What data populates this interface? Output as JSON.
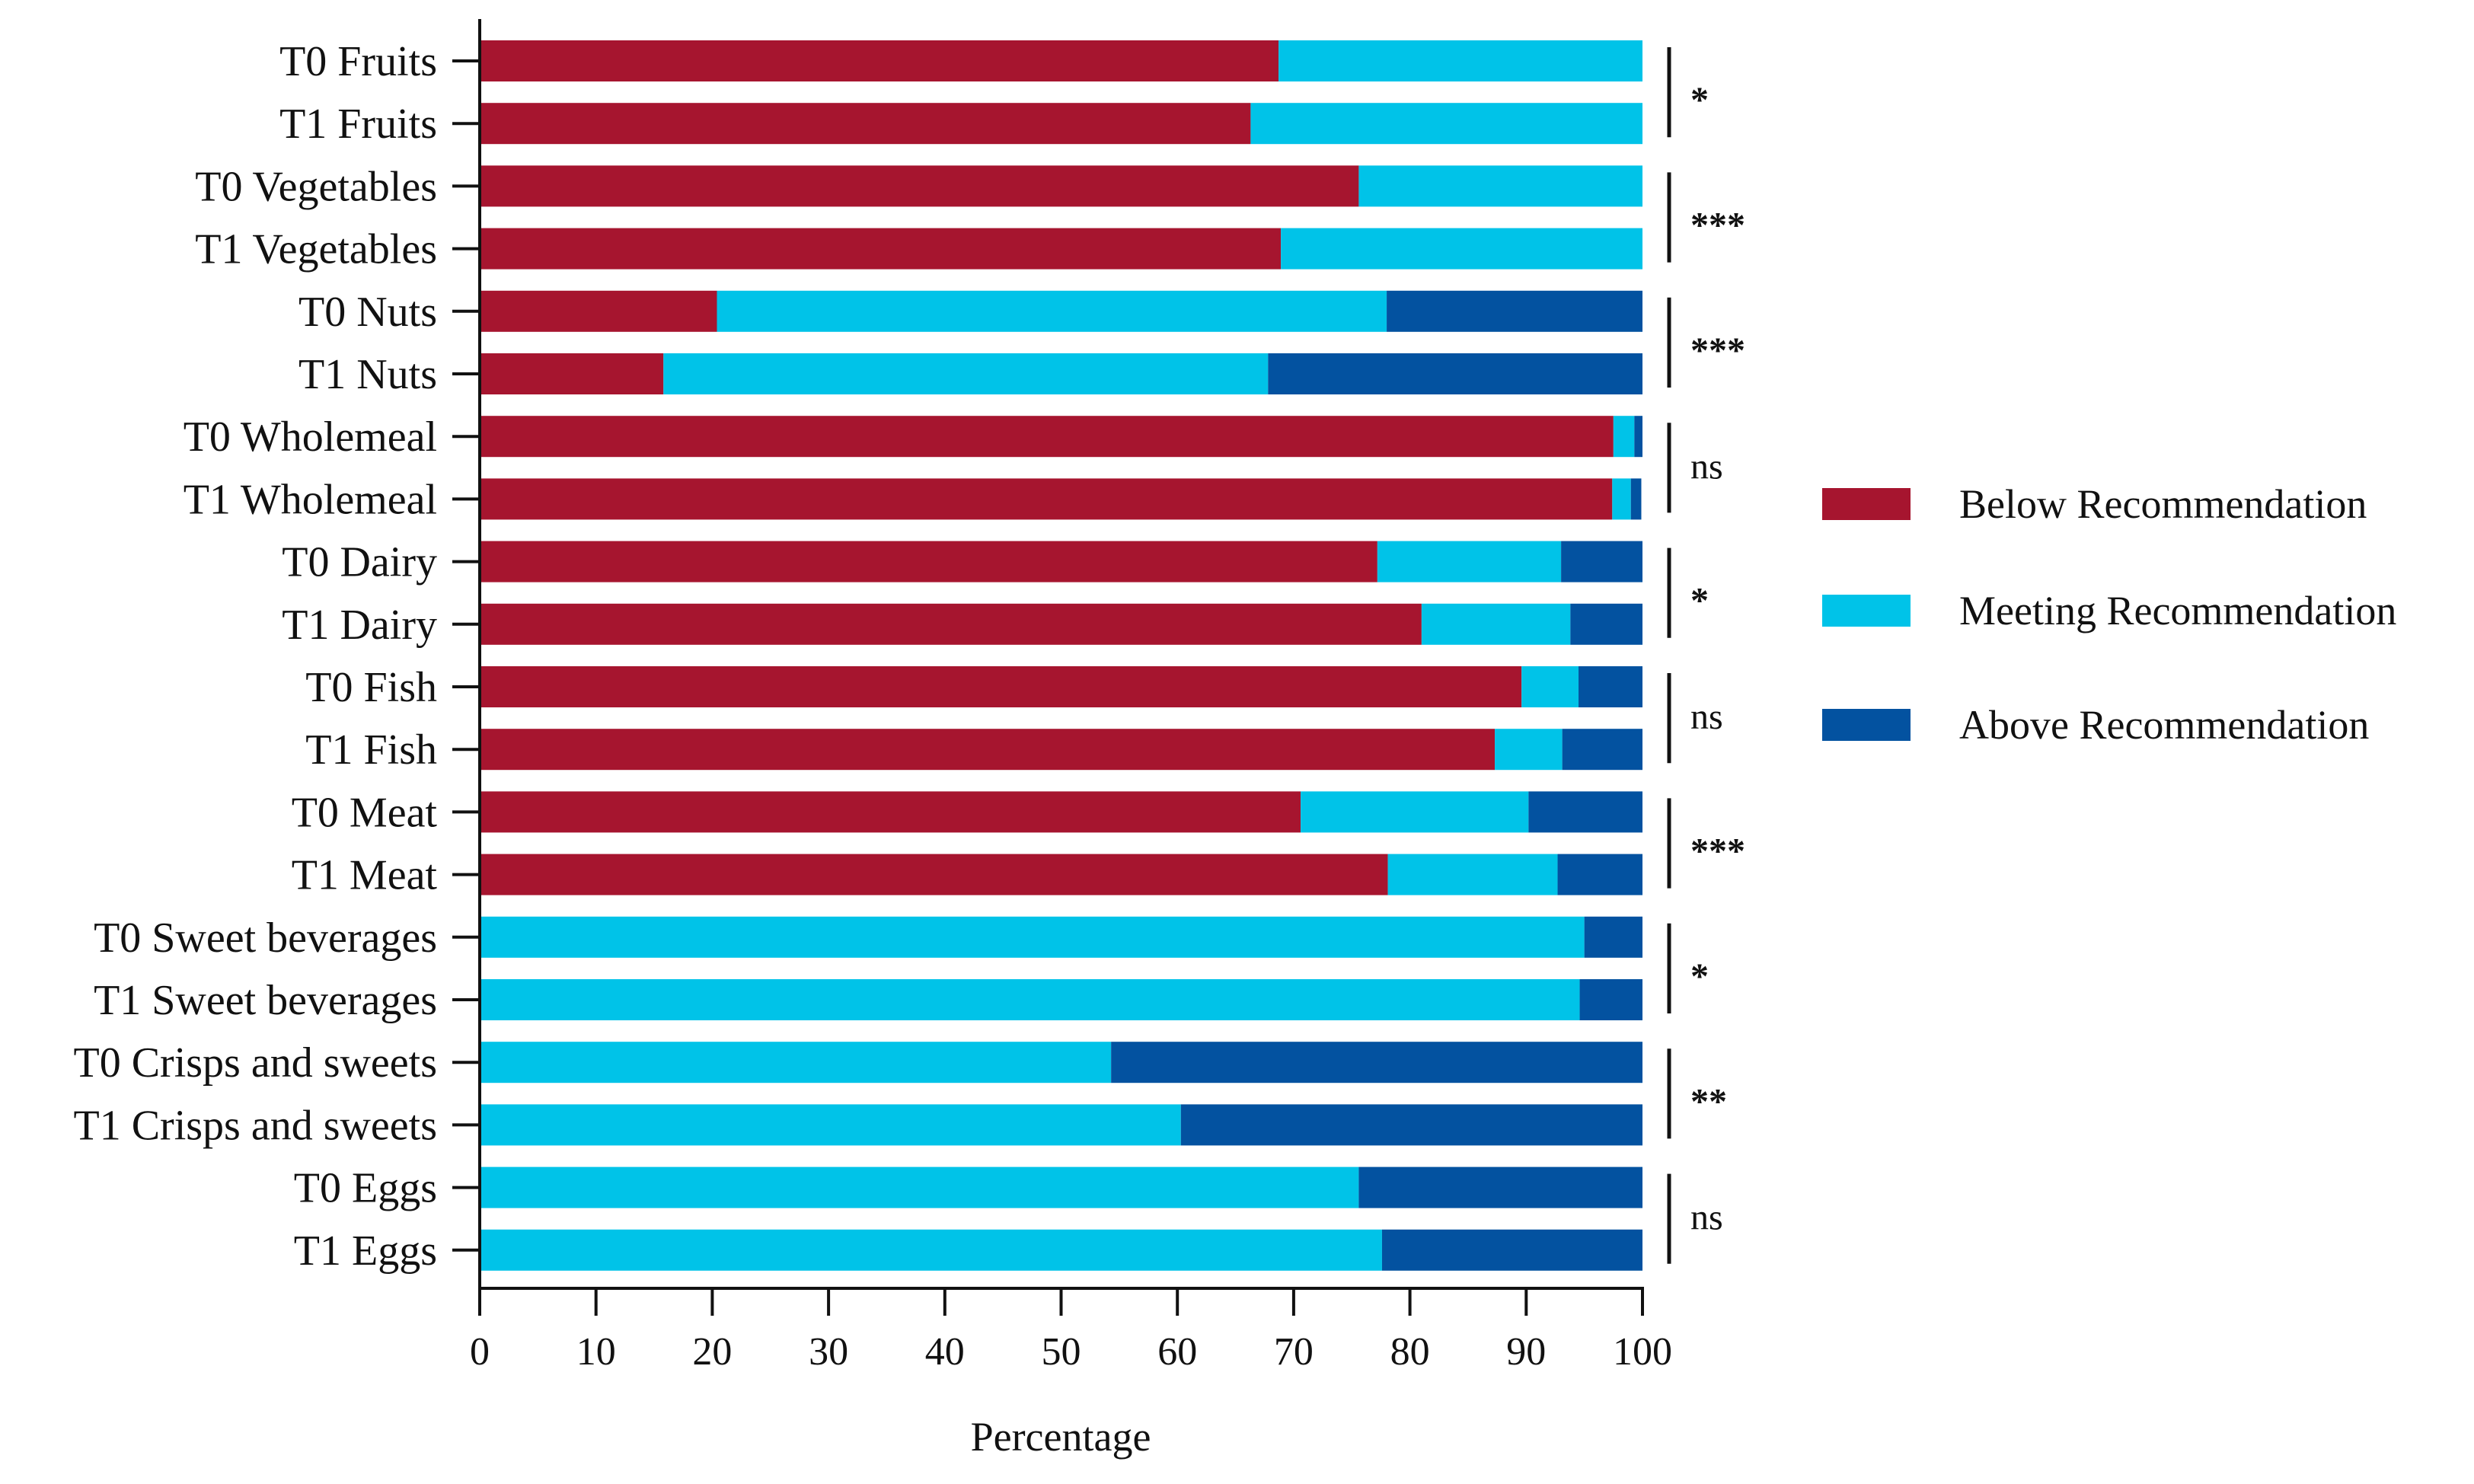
{
  "chart_data": {
    "type": "bar",
    "orientation": "horizontal",
    "stacked": true,
    "title": "",
    "xlabel": "Percentage",
    "ylabel": "",
    "xlim": [
      0,
      100
    ],
    "xticks": [
      "0",
      "10",
      "20",
      "30",
      "40",
      "50",
      "60",
      "70",
      "80",
      "90",
      "100"
    ],
    "grid": false,
    "legend_position": "right",
    "categories": [
      "T0 Fruits",
      "T1 Fruits",
      "T0 Vegetables",
      "T1 Vegetables",
      "T0 Nuts",
      "T1 Nuts",
      "T0 Wholemeal",
      "T1 Wholemeal",
      "T0 Dairy",
      "T1 Dairy",
      "T0 Fish",
      "T1 Fish",
      "T0 Meat",
      "T1 Meat",
      "T0 Sweet beverages",
      "T1 Sweet beverages",
      "T0 Crisps and sweets",
      "T1 Crisps and sweets",
      "T0 Eggs",
      "T1 Eggs"
    ],
    "series": [
      {
        "name": "Below Recommendation",
        "color": "#a6152f",
        "values": [
          68.7,
          66.3,
          75.6,
          68.9,
          20.4,
          15.8,
          97.5,
          97.4,
          77.2,
          81.0,
          89.6,
          87.3,
          70.6,
          78.1,
          0,
          0,
          0,
          0,
          0,
          0
        ]
      },
      {
        "name": "Meeting Recommendation",
        "color": "#00c3e8",
        "values": [
          31.3,
          33.7,
          24.4,
          31.1,
          57.6,
          52.0,
          1.8,
          1.6,
          15.8,
          12.8,
          4.9,
          5.8,
          19.6,
          14.6,
          95.0,
          94.6,
          54.3,
          60.3,
          75.6,
          77.6
        ]
      },
      {
        "name": "Above Recommendation",
        "color": "#0352a0",
        "values": [
          0,
          0,
          0,
          0,
          22.0,
          32.2,
          0.7,
          0.9,
          7.0,
          6.2,
          5.5,
          6.9,
          9.8,
          7.3,
          5.0,
          5.4,
          45.7,
          39.7,
          24.4,
          22.4
        ]
      }
    ],
    "significance": [
      "*",
      "***",
      "***",
      "ns",
      "*",
      "ns",
      "***",
      "*",
      "**",
      "ns"
    ]
  }
}
